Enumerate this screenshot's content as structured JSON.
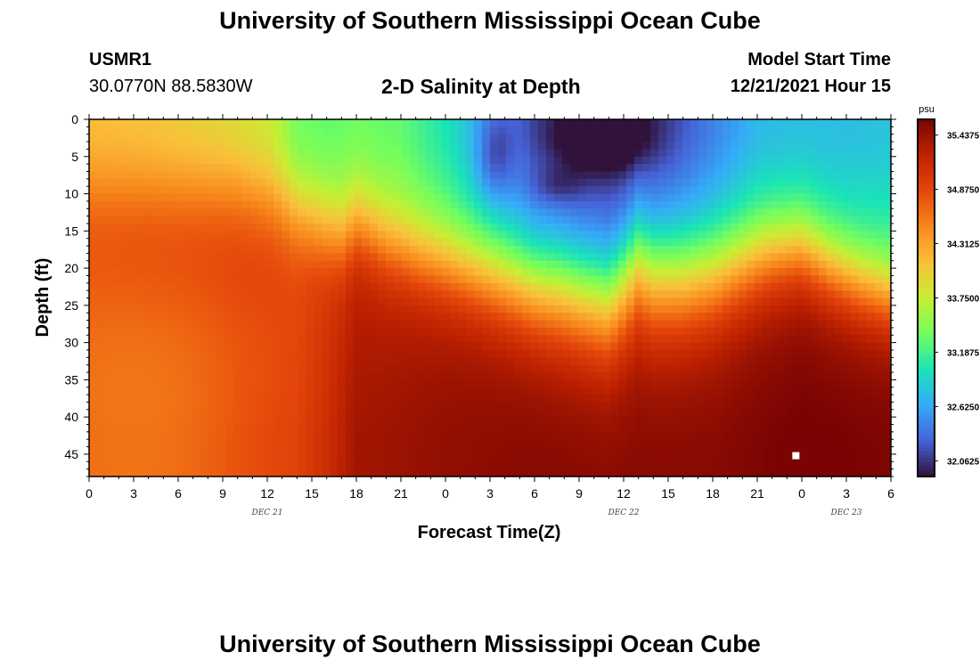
{
  "page": {
    "title_top": "University of Southern Mississippi Ocean Cube",
    "title_bottom": "University of Southern Mississippi Ocean Cube"
  },
  "header": {
    "station_id": "USMR1",
    "coordinates": "30.0770N  88.5830W",
    "plot_title": "2-D Salinity at Depth",
    "model_start_label": "Model Start Time",
    "model_start_value": "12/21/2021 Hour 15"
  },
  "chart_data": {
    "type": "heatmap",
    "title": "2-D Salinity at Depth",
    "xlabel": "Forecast Time(Z)",
    "ylabel": "Depth (ft)",
    "units": "psu",
    "x_range_hours": [
      0,
      54
    ],
    "y_range_ft": [
      0,
      48
    ],
    "y_inverted": true,
    "x_tick_labels": [
      "0",
      "3",
      "6",
      "9",
      "12",
      "15",
      "18",
      "21",
      "0",
      "3",
      "6",
      "9",
      "12",
      "15",
      "18",
      "21",
      "0",
      "3",
      "6"
    ],
    "y_tick_labels": [
      "0",
      "5",
      "10",
      "15",
      "20",
      "25",
      "30",
      "35",
      "40",
      "45"
    ],
    "y_tick_values": [
      0,
      5,
      10,
      15,
      20,
      25,
      30,
      35,
      40,
      45
    ],
    "day_labels": [
      {
        "text": "DEC 21",
        "hour": 12
      },
      {
        "text": "DEC 22",
        "hour": 36
      },
      {
        "text": "DEC 23",
        "hour": 51
      }
    ],
    "colorbar": {
      "min": 31.9,
      "max": 35.6,
      "labels": [
        "35.4375",
        "34.8750",
        "34.3125",
        "33.7500",
        "33.1875",
        "32.6250",
        "32.0625"
      ],
      "label_values": [
        35.4375,
        34.875,
        34.3125,
        33.75,
        33.1875,
        32.625,
        32.0625
      ],
      "colors": [
        "#30123b",
        "#4662d7",
        "#35abf8",
        "#1ae4b6",
        "#72fe5e",
        "#c7ef34",
        "#fabf3a",
        "#f8881c",
        "#e4460a",
        "#be2200",
        "#7a0403"
      ]
    },
    "marker": {
      "hour": 47.6,
      "depth_ft": 45.2
    },
    "field_description": "Salinity field (psu) vs forecast hour and depth; approximated from visible structure",
    "thermocline_depth_ft": {
      "hours": [
        0,
        5,
        10,
        12,
        13,
        14,
        15,
        16,
        17,
        18,
        19,
        20,
        22,
        24,
        26,
        28,
        30,
        32,
        34,
        35,
        36,
        37,
        38,
        40,
        42,
        44,
        46,
        48,
        50,
        52,
        54
      ],
      "depth": [
        10,
        10,
        10,
        11,
        12,
        13,
        14,
        15,
        16,
        14.5,
        15.5,
        17,
        18.5,
        19.5,
        20.5,
        21.5,
        22.5,
        23,
        24,
        24.5,
        22,
        19.5,
        21,
        21.5,
        21,
        19.5,
        18,
        17.5,
        20,
        22,
        23.5
      ]
    },
    "upper_layer_anchors": {
      "hours": [
        0,
        4,
        9,
        12,
        13,
        14,
        16,
        18,
        21,
        24,
        27,
        30,
        33,
        36,
        39,
        42,
        45,
        48,
        51,
        54
      ],
      "values": [
        34.35,
        34.3,
        34.15,
        34.0,
        33.85,
        33.6,
        33.55,
        33.6,
        33.55,
        33.25,
        32.85,
        32.4,
        32.2,
        32.15,
        32.35,
        32.65,
        32.95,
        33.0,
        33.0,
        33.05
      ]
    },
    "lower_layer_anchors": {
      "hours": [
        0,
        6,
        10,
        14,
        16,
        18,
        20,
        24,
        30,
        36,
        42,
        48,
        54
      ],
      "values": [
        34.85,
        34.9,
        34.95,
        34.95,
        35.1,
        35.35,
        35.35,
        35.4,
        35.45,
        35.45,
        35.45,
        35.55,
        35.5
      ]
    }
  }
}
